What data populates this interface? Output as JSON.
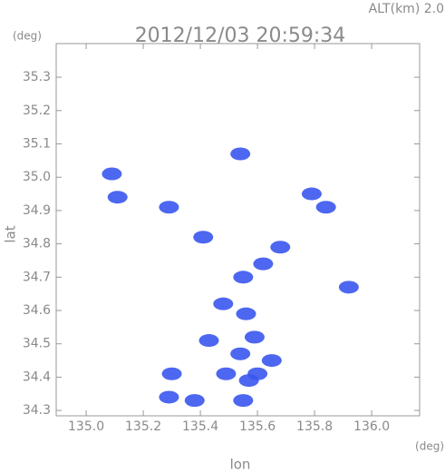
{
  "chart_data": {
    "type": "scatter",
    "title": "2012/12/03 20:59:34",
    "subtitle": "ALT(km) 2.0",
    "y_unit": "(deg)",
    "x_unit": "(deg)",
    "x_label": "lon",
    "y_label": "lat",
    "color": "#3a56ee",
    "x": [
      135.11,
      135.09,
      135.29,
      135.41,
      135.54,
      135.79,
      135.84,
      135.68,
      135.62,
      135.55,
      135.92,
      135.48,
      135.56,
      135.59,
      135.54,
      135.65,
      135.49,
      135.57,
      135.55,
      135.3,
      135.38,
      135.29,
      135.43,
      135.6
    ],
    "y": [
      34.94,
      35.01,
      34.91,
      34.82,
      35.07,
      34.95,
      34.91,
      34.79,
      34.74,
      34.7,
      34.67,
      34.62,
      34.59,
      34.52,
      34.47,
      34.45,
      34.41,
      34.39,
      34.33,
      34.41,
      34.33,
      34.34,
      34.51,
      34.41
    ],
    "xlim": [
      134.895,
      136.168
    ],
    "ylim": [
      34.284,
      35.401
    ],
    "xticks": [
      {
        "value": 135,
        "label": "135.0"
      },
      135.2,
      135.4,
      135.6,
      135.8,
      {
        "value": 136,
        "label": "136.0"
      }
    ],
    "yticks": [
      34.3,
      34.4,
      34.5,
      34.6,
      34.7,
      34.8,
      34.9,
      {
        "value": 35,
        "label": "35.0"
      },
      35.1,
      35.2,
      35.3
    ]
  }
}
